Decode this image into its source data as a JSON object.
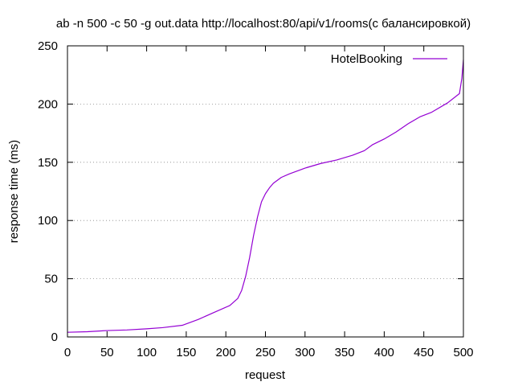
{
  "chart_data": {
    "type": "line",
    "title": "ab -n 500 -c 50 -g out.data http://localhost:80/api/v1/rooms(с балансировкой)",
    "xlabel": "request",
    "ylabel": "response time (ms)",
    "xlim": [
      0,
      500
    ],
    "ylim": [
      0,
      250
    ],
    "xticks": [
      "0",
      "50",
      "100",
      "150",
      "200",
      "250",
      "300",
      "350",
      "400",
      "450",
      "500"
    ],
    "yticks": [
      "0",
      "50",
      "100",
      "150",
      "200",
      "250"
    ],
    "grid": "horizontal dotted",
    "legend_position": "top-right",
    "series": [
      {
        "name": "HotelBooking",
        "color": "#9400d3",
        "x": [
          0,
          25,
          50,
          75,
          100,
          120,
          145,
          165,
          185,
          205,
          215,
          220,
          225,
          230,
          235,
          240,
          245,
          250,
          255,
          260,
          270,
          280,
          300,
          320,
          340,
          360,
          375,
          385,
          400,
          415,
          430,
          445,
          460,
          480,
          495,
          498,
          500
        ],
        "y": [
          4,
          4.5,
          5.5,
          6,
          7,
          8,
          10,
          15,
          21,
          27,
          33,
          40,
          52,
          68,
          87,
          103,
          116,
          123,
          128,
          132,
          137,
          140,
          145,
          149,
          152,
          156,
          160,
          165,
          170,
          176,
          183,
          189,
          193,
          201,
          209,
          222,
          238
        ]
      }
    ]
  }
}
